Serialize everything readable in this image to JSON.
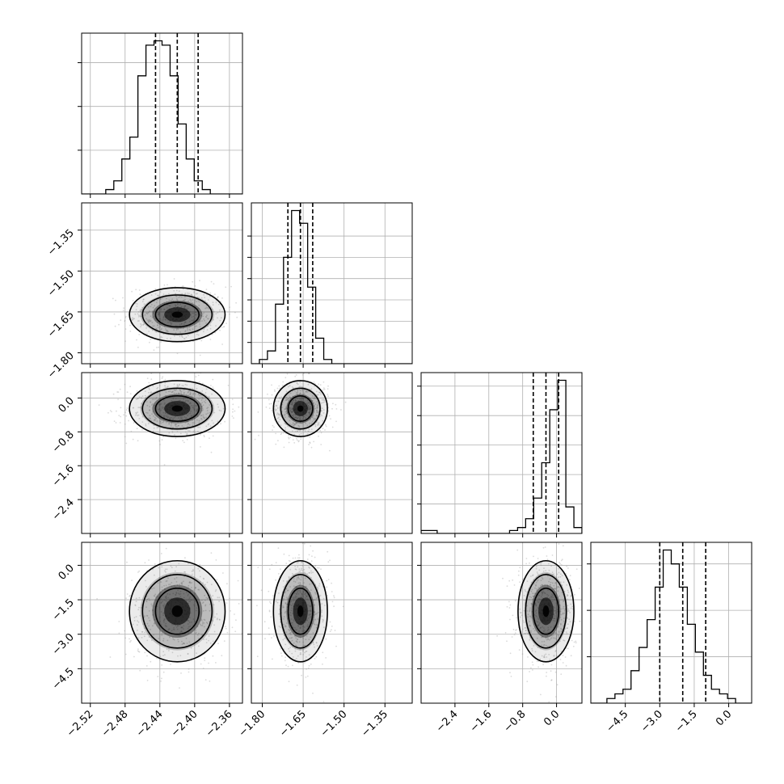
{
  "chart_data": {
    "type": "corner",
    "grid": true,
    "colors": {
      "hist_line": "#000000",
      "quantile_line": "#000000",
      "grid": "#b0b0b0",
      "frame": "#000000",
      "scatter": "#999999",
      "density": "#000000"
    },
    "parameters": [
      {
        "index": 0,
        "range": [
          -2.53,
          -2.345
        ],
        "ticks": [
          -2.52,
          -2.48,
          -2.44,
          -2.4,
          -2.36
        ],
        "tick_labels": [
          "−2.52",
          "−2.48",
          "−2.44",
          "−2.40",
          "−2.36"
        ],
        "quantiles": [
          -2.445,
          -2.42,
          -2.396
        ],
        "hist_bin_start": -2.53,
        "hist_bin_width": 0.00925,
        "hist_counts": [
          0,
          0,
          0,
          1,
          3,
          8,
          13,
          27,
          34,
          35,
          34,
          27,
          16,
          8,
          3,
          1,
          0,
          0,
          0,
          0
        ],
        "hist_count_ticks": [
          10,
          20,
          30
        ],
        "mean": -2.42,
        "sd": 0.025
      },
      {
        "index": 1,
        "range": [
          -1.84,
          -1.25
        ],
        "ticks": [
          -1.8,
          -1.65,
          -1.5,
          -1.35
        ],
        "tick_labels": [
          "−1.80",
          "−1.65",
          "−1.50",
          "−1.35"
        ],
        "quantiles": [
          -1.706,
          -1.66,
          -1.615
        ],
        "hist_bin_start": -1.84,
        "hist_bin_width": 0.0295,
        "hist_counts": [
          0,
          1,
          3,
          14,
          25,
          36,
          33,
          18,
          6,
          1,
          0,
          0,
          0,
          0,
          0,
          0,
          0,
          0,
          0,
          0
        ],
        "hist_count_ticks": [
          5,
          10,
          15,
          20,
          25,
          30
        ],
        "mean": -1.66,
        "sd": 0.045
      },
      {
        "index": 2,
        "range": [
          -3.2,
          0.6
        ],
        "ticks": [
          -2.4,
          -1.6,
          -0.8,
          0.0
        ],
        "tick_labels": [
          "−2.4",
          "−1.6",
          "−0.8",
          "0.0"
        ],
        "quantiles": [
          -0.55,
          -0.25,
          0.05
        ],
        "hist_bin_start": -3.2,
        "hist_bin_width": 0.19,
        "hist_counts": [
          1,
          1,
          0,
          0,
          0,
          0,
          0,
          0,
          0,
          0,
          0,
          1,
          2,
          5,
          12,
          24,
          42,
          52,
          9,
          2
        ],
        "hist_count_ticks": [
          10,
          20,
          30,
          40,
          50
        ],
        "mean": -0.25,
        "sd": 0.3
      },
      {
        "index": 3,
        "range": [
          -6.0,
          1.0
        ],
        "ticks": [
          -4.5,
          -3.0,
          -1.5,
          0.0
        ],
        "tick_labels": [
          "−4.5",
          "−3.0",
          "−1.5",
          "0.0"
        ],
        "quantiles": [
          -3.0,
          -2.0,
          -1.0
        ],
        "hist_bin_start": -6.0,
        "hist_bin_width": 0.35,
        "hist_counts": [
          0,
          0,
          1,
          2,
          3,
          7,
          12,
          18,
          25,
          33,
          30,
          25,
          17,
          11,
          6,
          3,
          2,
          1,
          0,
          0
        ],
        "hist_count_ticks": [
          10,
          20,
          30
        ],
        "mean": -2.0,
        "sd": 1.0
      }
    ]
  }
}
